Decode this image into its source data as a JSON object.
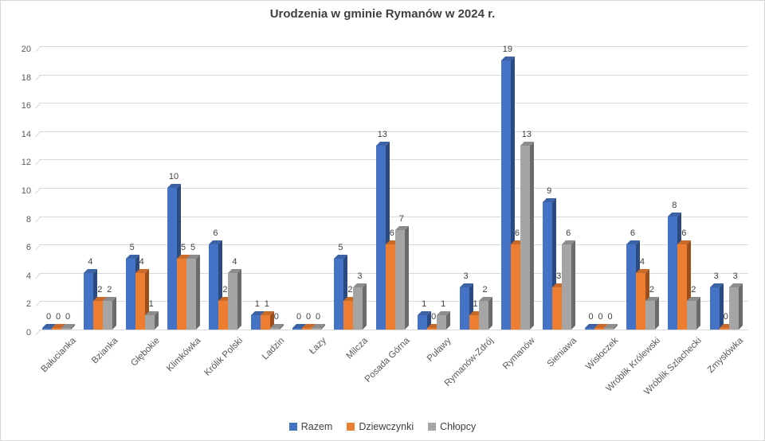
{
  "title": "Urodzenia w gminie Rymanów w 2024 r.",
  "colors": {
    "background": "#ffffff",
    "border": "#d7d7d7",
    "gridline": "#d9d9d9",
    "axis_text": "#595959",
    "title_text": "#404040",
    "data_label_text": "#404040"
  },
  "chart_data": {
    "type": "bar",
    "subtype": "3d-clustered-column",
    "title": "Urodzenia w gminie Rymanów w 2024 r.",
    "xlabel": "",
    "ylabel": "",
    "ylim": [
      0,
      20
    ],
    "ytick_step": 2,
    "yticks": [
      0,
      2,
      4,
      6,
      8,
      10,
      12,
      14,
      16,
      18,
      20
    ],
    "grid": true,
    "legend_position": "bottom",
    "data_labels": true,
    "categories": [
      "Bałucianka",
      "Bzianka",
      "Głębokie",
      "Klimkówka",
      "Królik Polski",
      "Ladzin",
      "Łazy",
      "Milcza",
      "Posada Górna",
      "Puławy",
      "Rymanów-Zdrój",
      "Rymanów",
      "Sieniawa",
      "Wisłoczek",
      "Wróblik Królewski",
      "Wróblik Szlachecki",
      "Zmysłówka"
    ],
    "series": [
      {
        "name": "Razem",
        "color": "#4472c4",
        "side_color": "#2a4a80",
        "top_color": "#3a62a5",
        "values": [
          0,
          4,
          5,
          10,
          6,
          1,
          0,
          5,
          13,
          1,
          3,
          19,
          9,
          0,
          6,
          8,
          3
        ]
      },
      {
        "name": "Dziewczynki",
        "color": "#ed7d31",
        "side_color": "#9e4e1c",
        "top_color": "#c96a29",
        "values": [
          0,
          2,
          4,
          5,
          2,
          1,
          0,
          2,
          6,
          0,
          1,
          6,
          3,
          0,
          4,
          6,
          0
        ]
      },
      {
        "name": "Chłopcy",
        "color": "#a5a5a5",
        "side_color": "#6b6b6b",
        "top_color": "#8c8c8c",
        "values": [
          0,
          2,
          1,
          5,
          4,
          0,
          0,
          3,
          7,
          1,
          2,
          13,
          6,
          0,
          2,
          2,
          3
        ]
      }
    ]
  }
}
